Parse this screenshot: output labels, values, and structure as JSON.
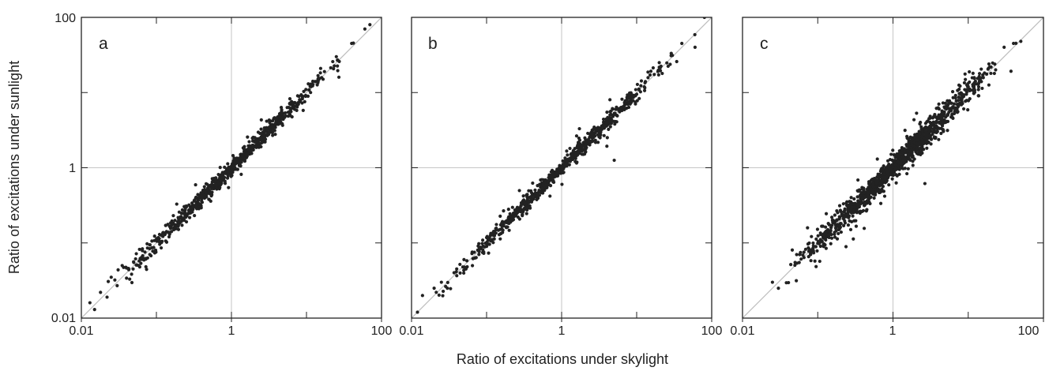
{
  "figure": {
    "xlabel": "Ratio of excitations under skylight",
    "ylabel": "Ratio of excitations under sunlight"
  },
  "colors": {
    "points": "#222222",
    "identity_line": "#bdbdbd",
    "reference_lines": "#c6c6c6",
    "frame": "#222222"
  },
  "chart_data": [
    {
      "type": "scatter",
      "panel_label": "a",
      "xscale": "log",
      "yscale": "log",
      "xlim": [
        0.01,
        100
      ],
      "ylim": [
        0.01,
        100
      ],
      "xticks": [
        0.01,
        1,
        100
      ],
      "xticklabels": [
        "0.01",
        "1",
        "100"
      ],
      "yticks": [
        0.01,
        1,
        100
      ],
      "yticklabels": [
        "0.01",
        "1",
        "100"
      ],
      "reference_lines": {
        "x": 1,
        "y": 1
      },
      "identity_line": true,
      "grid": false,
      "n_points_approx": 700,
      "log10_x_range": [
        -1.9,
        1.85
      ],
      "log10_y_range": [
        -1.9,
        1.9
      ],
      "spread_log10": 0.05,
      "points": [
        [
          0.013,
          0.016
        ],
        [
          0.015,
          0.013
        ],
        [
          0.018,
          0.022
        ],
        [
          0.022,
          0.019
        ],
        [
          0.025,
          0.035
        ],
        [
          0.03,
          0.027
        ],
        [
          0.035,
          0.05
        ],
        [
          0.04,
          0.034
        ],
        [
          0.05,
          0.055
        ],
        [
          0.06,
          0.048
        ],
        [
          0.1,
          0.11
        ],
        [
          0.15,
          0.13
        ],
        [
          0.25,
          0.31
        ],
        [
          0.4,
          0.36
        ],
        [
          0.6,
          0.65
        ],
        [
          1.0,
          1.05
        ],
        [
          1.5,
          1.4
        ],
        [
          3.0,
          3.3
        ],
        [
          6.0,
          5.6
        ],
        [
          12.0,
          13.0
        ],
        [
          25.0,
          30.0
        ],
        [
          40.0,
          45.0
        ],
        [
          60.0,
          70.0
        ],
        [
          70.0,
          80.0
        ]
      ]
    },
    {
      "type": "scatter",
      "panel_label": "b",
      "xscale": "log",
      "yscale": "log",
      "xlim": [
        0.01,
        100
      ],
      "ylim": [
        0.01,
        100
      ],
      "xticks": [
        0.01,
        1,
        100
      ],
      "xticklabels": [
        "0.01",
        "1",
        "100"
      ],
      "yticks": [
        0.01,
        1,
        100
      ],
      "yticklabels": [
        "0.01",
        "1",
        "100"
      ],
      "reference_lines": {
        "x": 1,
        "y": 1
      },
      "identity_line": true,
      "grid": false,
      "n_points_approx": 700,
      "log10_x_range": [
        -1.9,
        1.9
      ],
      "log10_y_range": [
        -1.95,
        2.0
      ],
      "spread_log10": 0.045,
      "points": [
        [
          0.012,
          0.012
        ],
        [
          0.014,
          0.02
        ],
        [
          0.02,
          0.025
        ],
        [
          0.025,
          0.03
        ],
        [
          0.03,
          0.025
        ],
        [
          0.04,
          0.045
        ],
        [
          0.05,
          0.06
        ],
        [
          0.1,
          0.09
        ],
        [
          0.2,
          0.22
        ],
        [
          0.4,
          0.42
        ],
        [
          1.0,
          0.95
        ],
        [
          2.0,
          2.1
        ],
        [
          4.0,
          4.4
        ],
        [
          10.0,
          9.5
        ],
        [
          20.0,
          25.0
        ],
        [
          40.0,
          45.0
        ],
        [
          60.0,
          40.0
        ],
        [
          80.0,
          100.0
        ]
      ]
    },
    {
      "type": "scatter",
      "panel_label": "c",
      "xscale": "log",
      "yscale": "log",
      "xlim": [
        0.01,
        100
      ],
      "ylim": [
        0.01,
        100
      ],
      "xticks": [
        0.01,
        1,
        100
      ],
      "xticklabels": [
        "0.01",
        "1",
        "100"
      ],
      "yticks": [
        0.01,
        1,
        100
      ],
      "yticklabels": [
        "0.01",
        "1",
        "100"
      ],
      "reference_lines": {
        "x": 1,
        "y": 1
      },
      "identity_line": true,
      "grid": false,
      "n_points_approx": 1200,
      "log10_x_range": [
        -1.6,
        1.7
      ],
      "log10_y_range": [
        -1.6,
        1.75
      ],
      "spread_log10": 0.07,
      "points": [
        [
          0.025,
          0.03
        ],
        [
          0.03,
          0.025
        ],
        [
          0.05,
          0.055
        ],
        [
          0.08,
          0.07
        ],
        [
          0.15,
          0.16
        ],
        [
          0.3,
          0.32
        ],
        [
          0.6,
          0.55
        ],
        [
          1.0,
          1.1
        ],
        [
          2.0,
          2.0
        ],
        [
          4.0,
          4.5
        ],
        [
          10.0,
          12.0
        ],
        [
          20.0,
          18.0
        ],
        [
          30.0,
          40.0
        ],
        [
          40.0,
          45.0
        ],
        [
          50.0,
          48.0
        ]
      ]
    }
  ]
}
